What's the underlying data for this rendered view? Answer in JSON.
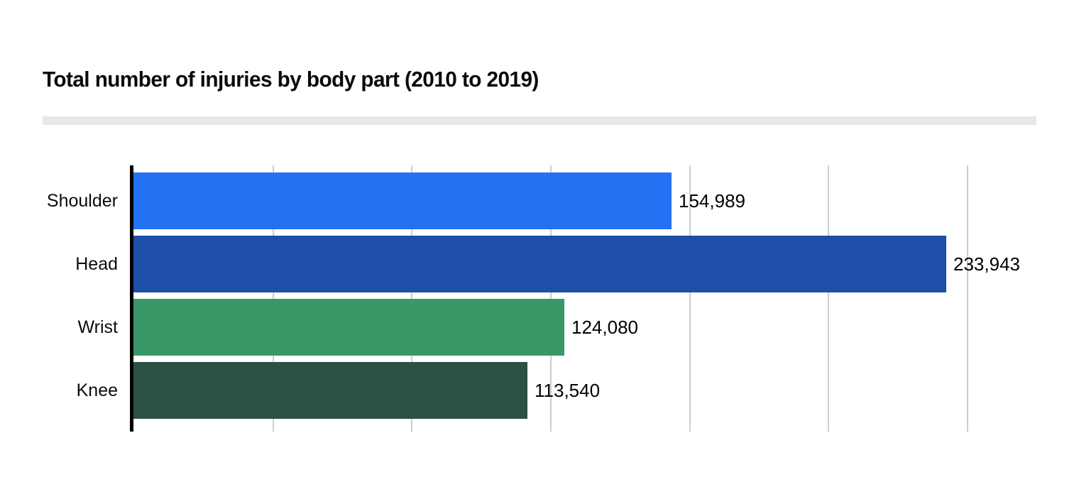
{
  "title": "Total number of injuries by body part (2010 to 2019)",
  "colors": {
    "title_text": "#0a0a0a",
    "divider": "#e8e8e8",
    "axis_line": "#000000",
    "gridline": "#cdcdcd",
    "label_text": "#0c0c0c",
    "value_text": "#000000",
    "background": "#ffffff"
  },
  "chart_data": {
    "type": "bar",
    "orientation": "horizontal",
    "title": "Total number of injuries by body part (2010 to 2019)",
    "categories": [
      "Shoulder",
      "Head",
      "Wrist",
      "Knee"
    ],
    "values": [
      154989,
      233943,
      124080,
      113540
    ],
    "value_labels": [
      "154,989",
      "233,943",
      "124,080",
      "113,540"
    ],
    "bar_colors": [
      "#2471f2",
      "#1e4fa8",
      "#3a9868",
      "#2a5144"
    ],
    "xlabel": "",
    "ylabel": "",
    "xlim": [
      0,
      260000
    ],
    "gridlines": [
      40000,
      80000,
      120000,
      160000,
      200000,
      240000
    ],
    "grid": true,
    "legend_position": "none",
    "axis_tick_labels_shown": false
  }
}
